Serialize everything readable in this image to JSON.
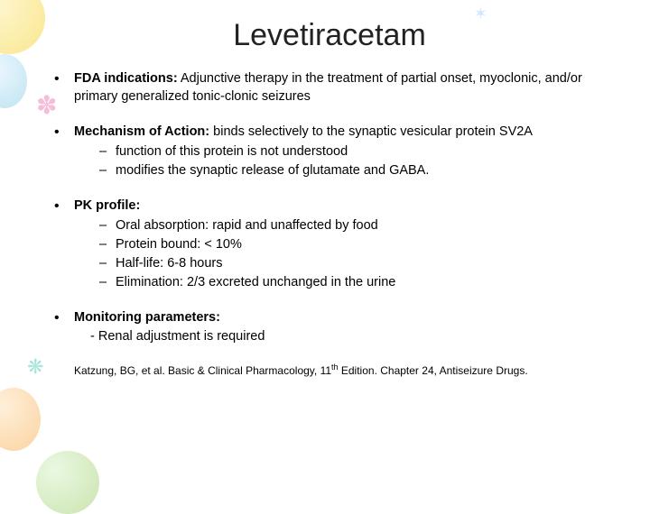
{
  "title": "Levetiracetam",
  "bullets": {
    "b1": {
      "label": "FDA indications:",
      "text": " Adjunctive therapy in the treatment of partial onset, myoclonic, and/or primary generalized tonic-clonic seizures"
    },
    "b2": {
      "label": "Mechanism of Action:",
      "text": " binds selectively to the synaptic vesicular protein SV2A",
      "sub1": "function of this protein is not understood",
      "sub2": "modifies the synaptic release of glutamate and GABA."
    },
    "b3": {
      "label": "PK profile:",
      "sub1": "Oral absorption: rapid and unaffected by food",
      "sub2": "Protein bound: < 10%",
      "sub3": "Half-life: 6-8 hours",
      "sub4": "Elimination: 2/3 excreted unchanged in the urine"
    },
    "b4": {
      "label": "Monitoring parameters:",
      "sub1": "- Renal adjustment is required"
    }
  },
  "citation_pre": "Katzung, BG, et al. Basic & Clinical Pharmacology, 11",
  "citation_sup": "th",
  "citation_post": " Edition. Chapter 24, Antiseizure Drugs."
}
